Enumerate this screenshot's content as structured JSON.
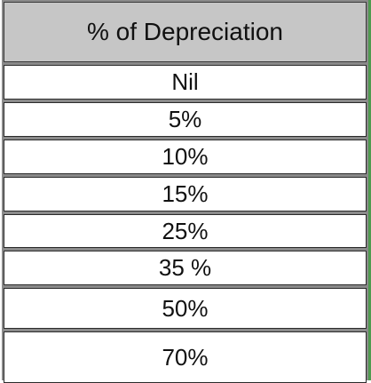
{
  "table": {
    "header": "% of Depreciation",
    "rows": [
      "Nil",
      "5%",
      "10%",
      "15%",
      "25%",
      "35 %",
      "50%",
      "70%"
    ]
  }
}
